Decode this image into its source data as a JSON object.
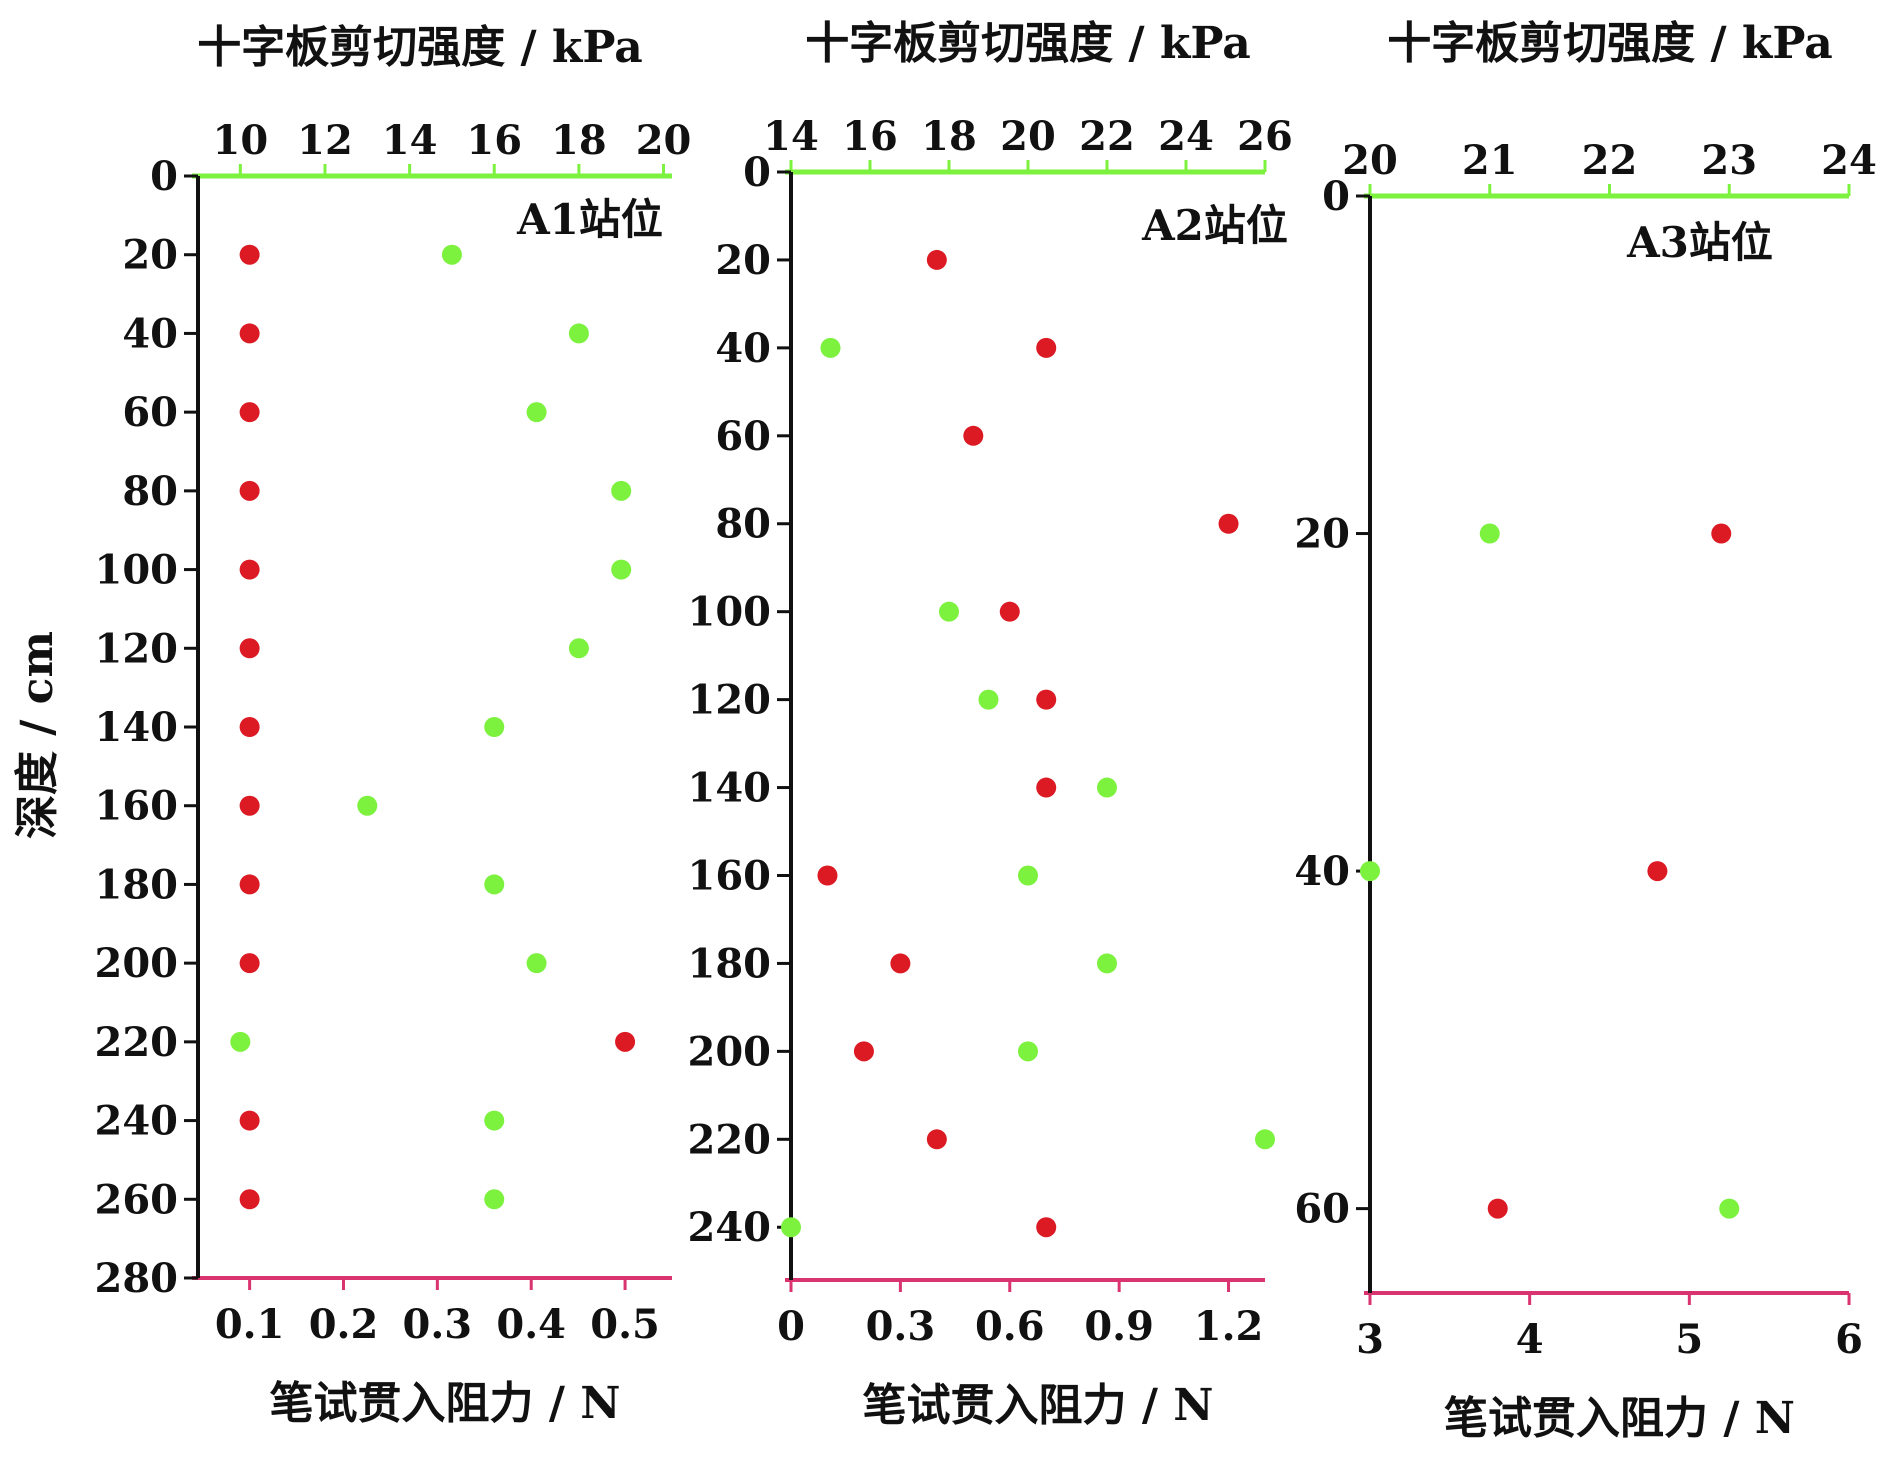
{
  "chart_data": {
    "type": "scatter",
    "ylabel": "深度 / cm",
    "colors": {
      "penetration": "#dc1a24",
      "vane_shear": "#7cf23e",
      "penetration_axis": "#d93370",
      "vane_axis": "#7cf23e"
    },
    "panels": [
      {
        "station": "A1站位",
        "top_label": "十字板剪切强度 / kPa",
        "bottom_label": "笔试贯入阻力 / N",
        "top_ticks": [
          10,
          12,
          14,
          16,
          18,
          20
        ],
        "top_range": [
          9,
          20.2
        ],
        "bottom_ticks": [
          0.1,
          0.2,
          0.3,
          0.4,
          0.5
        ],
        "bottom_tick_labels": [
          "0.1",
          "0.2",
          "0.3",
          "0.4",
          "0.5"
        ],
        "bottom_range": [
          0.045,
          0.55
        ],
        "y_ticks": [
          0,
          20,
          40,
          60,
          80,
          100,
          120,
          140,
          160,
          180,
          200,
          220,
          240,
          260,
          280
        ],
        "y_range": [
          0,
          280
        ],
        "penetration_points": [
          [
            0.1,
            20
          ],
          [
            0.1,
            40
          ],
          [
            0.1,
            60
          ],
          [
            0.1,
            80
          ],
          [
            0.1,
            100
          ],
          [
            0.1,
            120
          ],
          [
            0.1,
            140
          ],
          [
            0.1,
            160
          ],
          [
            0.1,
            180
          ],
          [
            0.1,
            200
          ],
          [
            0.5,
            220
          ],
          [
            0.1,
            240
          ],
          [
            0.1,
            260
          ]
        ],
        "vane_points": [
          [
            15,
            20
          ],
          [
            18,
            40
          ],
          [
            17,
            60
          ],
          [
            19,
            80
          ],
          [
            19,
            100
          ],
          [
            18,
            120
          ],
          [
            16,
            140
          ],
          [
            13,
            160
          ],
          [
            16,
            180
          ],
          [
            17,
            200
          ],
          [
            10,
            220
          ],
          [
            16,
            240
          ],
          [
            16,
            260
          ]
        ]
      },
      {
        "station": "A2站位",
        "top_label": "十字板剪切强度 / kPa",
        "bottom_label": "笔试贯入阻力 / N",
        "top_ticks": [
          14,
          16,
          18,
          20,
          22,
          24,
          26
        ],
        "top_range": [
          14,
          26
        ],
        "bottom_ticks": [
          0,
          0.3,
          0.6,
          0.9,
          1.2
        ],
        "bottom_tick_labels": [
          "0",
          "0.3",
          "0.6",
          "0.9",
          "1.2"
        ],
        "bottom_range": [
          0,
          1.3
        ],
        "y_ticks": [
          0,
          20,
          40,
          60,
          80,
          100,
          120,
          140,
          160,
          180,
          200,
          220,
          240
        ],
        "y_range": [
          0,
          252
        ],
        "penetration_points": [
          [
            0.4,
            20
          ],
          [
            0.7,
            40
          ],
          [
            0.5,
            60
          ],
          [
            1.2,
            80
          ],
          [
            0.6,
            100
          ],
          [
            0.7,
            120
          ],
          [
            0.7,
            140
          ],
          [
            0.1,
            160
          ],
          [
            0.3,
            180
          ],
          [
            0.2,
            200
          ],
          [
            0.4,
            220
          ],
          [
            0.7,
            240
          ]
        ],
        "vane_points": [
          [
            15,
            40
          ],
          [
            18,
            100
          ],
          [
            19,
            120
          ],
          [
            22,
            140
          ],
          [
            20,
            160
          ],
          [
            22,
            180
          ],
          [
            20,
            200
          ],
          [
            26,
            220
          ],
          [
            14,
            240
          ]
        ]
      },
      {
        "station": "A3站位",
        "top_label": "十字板剪切强度 / kPa",
        "bottom_label": "笔试贯入阻力 / N",
        "top_ticks": [
          20,
          21,
          22,
          23,
          24
        ],
        "top_range": [
          20,
          24
        ],
        "bottom_ticks": [
          3,
          4,
          5,
          6
        ],
        "bottom_tick_labels": [
          "3",
          "4",
          "5",
          "6"
        ],
        "bottom_range": [
          3,
          6
        ],
        "y_ticks": [
          0,
          20,
          40,
          60
        ],
        "y_range": [
          0,
          65
        ],
        "penetration_points": [
          [
            5.2,
            20
          ],
          [
            4.8,
            40
          ],
          [
            3.8,
            60
          ]
        ],
        "vane_points": [
          [
            21,
            20
          ],
          [
            20,
            40
          ],
          [
            23,
            60
          ]
        ]
      }
    ]
  }
}
